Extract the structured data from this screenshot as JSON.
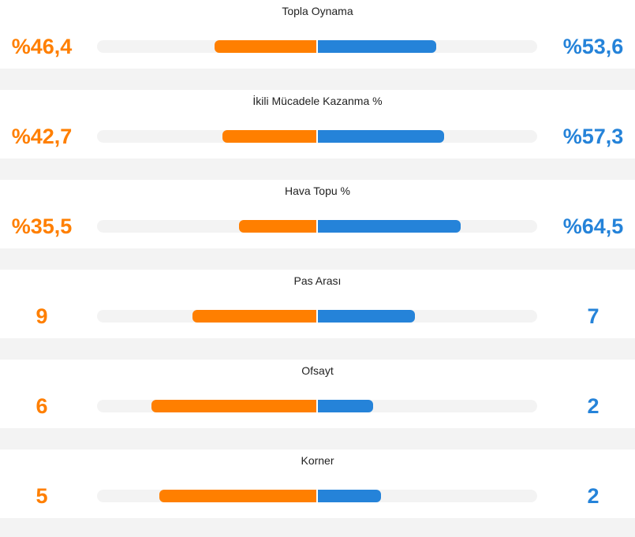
{
  "stats": [
    {
      "title": "Topla Oynama",
      "home_value": "%46,4",
      "away_value": "%53,6",
      "home_share": 0.464,
      "away_share": 0.536
    },
    {
      "title": "İkili Mücadele Kazanma %",
      "home_value": "%42,7",
      "away_value": "%57,3",
      "home_share": 0.427,
      "away_share": 0.573
    },
    {
      "title": "Hava Topu %",
      "home_value": "%35,5",
      "away_value": "%64,5",
      "home_share": 0.355,
      "away_share": 0.645
    },
    {
      "title": "Pas Arası",
      "home_value": "9",
      "away_value": "7",
      "home_share": 0.5625,
      "away_share": 0.4375
    },
    {
      "title": "Ofsayt",
      "home_value": "6",
      "away_value": "2",
      "home_share": 0.75,
      "away_share": 0.25
    },
    {
      "title": "Korner",
      "home_value": "5",
      "away_value": "2",
      "home_share": 0.714,
      "away_share": 0.286
    }
  ],
  "colors": {
    "home": "#ff7f00",
    "away": "#2583d9",
    "track": "#f3f3f3"
  }
}
